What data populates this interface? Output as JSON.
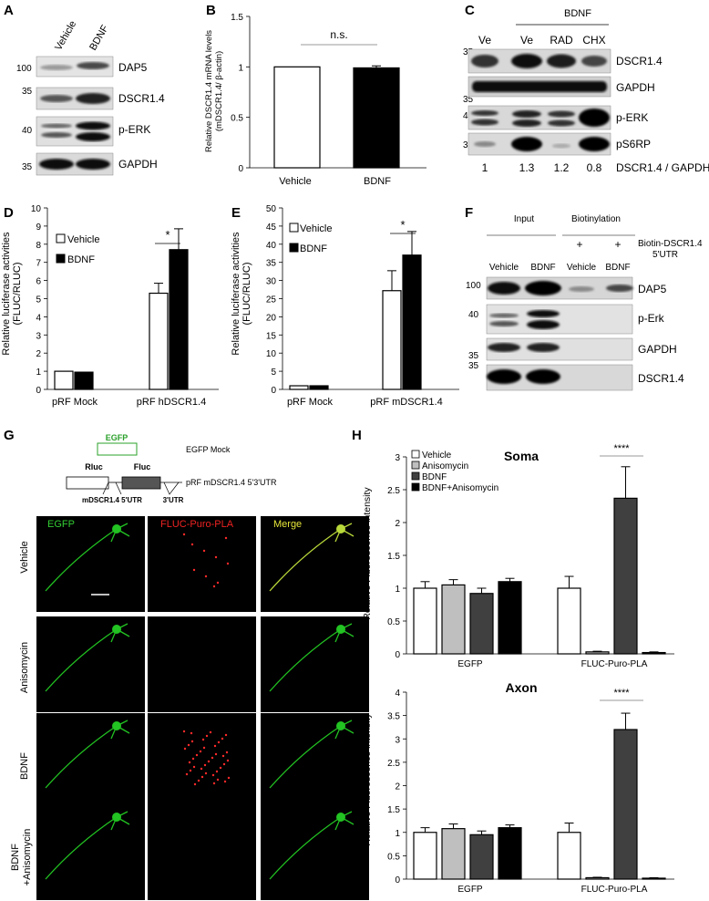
{
  "panel_letters": {
    "a": "A",
    "b": "B",
    "c": "C",
    "d": "D",
    "e": "E",
    "f": "F",
    "g": "G",
    "h": "H"
  },
  "panel_a": {
    "lanes": [
      "Vehicle",
      "BDNF"
    ],
    "blots": [
      {
        "mw": "100",
        "label": "DAP5"
      },
      {
        "mw": "35",
        "label": "DSCR1.4"
      },
      {
        "mw": "40",
        "label": "p-ERK"
      },
      {
        "mw": "35",
        "label": "GAPDH"
      }
    ]
  },
  "panel_b": {
    "ylabel_line1": "Relative DSCR1.4 mRNA levels",
    "ylabel_line2": "(mDSCR1.4/ β-actin)",
    "sig": "n.s.",
    "ticks": [
      "0",
      "0.5",
      "1",
      "1.5"
    ]
  },
  "panel_c": {
    "treatment": "BDNF",
    "lanes": [
      "Ve",
      "Ve",
      "RAD",
      "CHX"
    ],
    "blots": [
      {
        "mw": "35",
        "label": "DSCR1.4"
      },
      {
        "mw": "35",
        "label": "GAPDH"
      },
      {
        "mw": "40",
        "label": "p-ERK"
      },
      {
        "mw": "35",
        "label": "pS6RP"
      }
    ],
    "ratios": [
      "1",
      "1.3",
      "1.2",
      "0.8"
    ],
    "ratio_label": "DSCR1.4 / GAPDH"
  },
  "panel_d": {
    "ylabel_line1": "Relative luciferase activities",
    "ylabel_line2": "(FLUC/RLUC)",
    "legend": [
      "Vehicle",
      "BDNF"
    ],
    "sig": "*",
    "ticks": [
      "0",
      "1",
      "2",
      "3",
      "4",
      "5",
      "6",
      "7",
      "8",
      "9",
      "10"
    ]
  },
  "panel_e": {
    "ylabel_line1": "Relative luciferase activities",
    "ylabel_line2": "(FLUC/RLUC)",
    "legend": [
      "Vehicle",
      "BDNF"
    ],
    "sig": "*",
    "ticks": [
      "0",
      "5",
      "10",
      "15",
      "20",
      "25",
      "30",
      "35",
      "40",
      "45",
      "50"
    ]
  },
  "panel_f": {
    "col_input": "Input",
    "col_biotin": "Biotinylation",
    "plus1": "+",
    "plus2": "+",
    "probe_line1": "Biotin-DSCR1.4",
    "probe_line2": "5'UTR",
    "lanes": [
      "Vehicle",
      "BDNF",
      "Vehicle",
      "BDNF"
    ],
    "blots": [
      {
        "mw": "100",
        "label": "DAP5"
      },
      {
        "mw": "40",
        "label": "p-Erk"
      },
      {
        "mw": "35",
        "label": "GAPDH"
      },
      {
        "mw": "35",
        "label": "DSCR1.4"
      }
    ]
  },
  "panel_g": {
    "egfp_box": "EGFP",
    "egfp_desc": "EGFP Mock",
    "rluc": "Rluc",
    "fluc": "Fluc",
    "construct_desc": "pRF mDSCR1.4 5'3'UTR",
    "utr5": "mDSCR1.4 5'UTR",
    "utr3": "3'UTR",
    "channels": [
      "EGFP",
      "FLUC-Puro-PLA",
      "Merge"
    ],
    "rows": [
      "Vehicle",
      "Anisomycin",
      "BDNF",
      "BDNF\n+Anisomycin"
    ],
    "row_bdnf": "BDNF",
    "row_aniso": "+Anisomycin"
  },
  "panel_h": {
    "legend": [
      "Vehicle",
      "Anisomycin",
      "BDNF",
      "BDNF+Anisomycin"
    ],
    "ylabel": "Relative Fluorescence intensity",
    "soma_title": "Soma",
    "axon_title": "Axon",
    "sig": "****",
    "groups": [
      "EGFP",
      "FLUC-Puro-PLA"
    ],
    "soma_ticks": [
      "0",
      "0.5",
      "1",
      "1.5",
      "2",
      "2.5",
      "3"
    ],
    "axon_ticks": [
      "0",
      "0.5",
      "1",
      "1.5",
      "2",
      "2.5",
      "3",
      "3.5",
      "4"
    ]
  },
  "chart_data": [
    {
      "type": "bar",
      "panel": "B",
      "categories": [
        "Vehicle",
        "BDNF"
      ],
      "values": [
        1.0,
        0.99
      ],
      "errors": [
        0,
        0.02
      ],
      "ylim": [
        0,
        1.5
      ],
      "ylabel": "Relative DSCR1.4 mRNA levels (mDSCR1.4/ β-actin)",
      "colors": [
        "#ffffff",
        "#000000"
      ]
    },
    {
      "type": "bar",
      "panel": "D",
      "categories": [
        "pRF Mock",
        "pRF hDSCR1.4"
      ],
      "series": [
        {
          "name": "Vehicle",
          "values": [
            1.0,
            5.3
          ],
          "errors": [
            0,
            0.55
          ]
        },
        {
          "name": "BDNF",
          "values": [
            0.95,
            7.7
          ],
          "errors": [
            0,
            1.15
          ]
        }
      ],
      "ylim": [
        0,
        10
      ],
      "ylabel": "Relative luciferase activities (FLUC/RLUC)"
    },
    {
      "type": "bar",
      "panel": "E",
      "categories": [
        "pRF Mock",
        "pRF mDSCR1.4"
      ],
      "series": [
        {
          "name": "Vehicle",
          "values": [
            1.0,
            27.2
          ],
          "errors": [
            0,
            5.5
          ]
        },
        {
          "name": "BDNF",
          "values": [
            1.0,
            37.0
          ],
          "errors": [
            0,
            6.5
          ]
        }
      ],
      "ylim": [
        0,
        50
      ],
      "ylabel": "Relative luciferase activities (FLUC/RLUC)"
    },
    {
      "type": "bar",
      "panel": "H-Soma",
      "title": "Soma",
      "categories": [
        "EGFP",
        "FLUC-Puro-PLA"
      ],
      "series": [
        {
          "name": "Vehicle",
          "values": [
            1.0,
            1.0
          ],
          "errors": [
            0.1,
            0.18
          ]
        },
        {
          "name": "Anisomycin",
          "values": [
            1.05,
            0.03
          ],
          "errors": [
            0.08,
            0.01
          ]
        },
        {
          "name": "BDNF",
          "values": [
            0.92,
            2.37
          ],
          "errors": [
            0.08,
            0.48
          ]
        },
        {
          "name": "BDNF+Anisomycin",
          "values": [
            1.1,
            0.02
          ],
          "errors": [
            0.05,
            0.01
          ]
        }
      ],
      "ylim": [
        0,
        3
      ],
      "ylabel": "Relative Fluorescence intensity"
    },
    {
      "type": "bar",
      "panel": "H-Axon",
      "title": "Axon",
      "categories": [
        "EGFP",
        "FLUC-Puro-PLA"
      ],
      "series": [
        {
          "name": "Vehicle",
          "values": [
            1.0,
            1.0
          ],
          "errors": [
            0.1,
            0.2
          ]
        },
        {
          "name": "Anisomycin",
          "values": [
            1.08,
            0.03
          ],
          "errors": [
            0.1,
            0.01
          ]
        },
        {
          "name": "BDNF",
          "values": [
            0.95,
            3.2
          ],
          "errors": [
            0.08,
            0.35
          ]
        },
        {
          "name": "BDNF+Anisomycin",
          "values": [
            1.1,
            0.02
          ],
          "errors": [
            0.06,
            0.01
          ]
        }
      ],
      "ylim": [
        0,
        4
      ],
      "ylabel": "Relative Fluorescence intensity"
    }
  ]
}
